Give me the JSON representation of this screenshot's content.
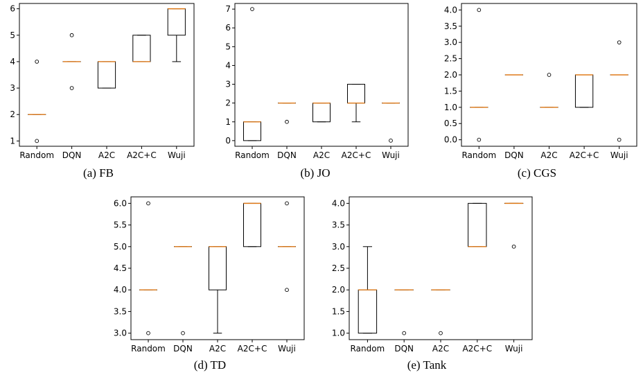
{
  "chart_data": [
    {
      "type": "box",
      "caption": "(a)  FB",
      "categories": [
        "Random",
        "DQN",
        "A2C",
        "A2C+C",
        "Wuji"
      ],
      "yticks": [
        "1",
        "2",
        "3",
        "4",
        "5",
        "6"
      ],
      "ylim": [
        0.8,
        6.2
      ],
      "boxes": [
        {
          "q1": 2,
          "median": 2,
          "q3": 2,
          "whislo": 2,
          "whishi": 2,
          "fliers": [
            1,
            4
          ]
        },
        {
          "q1": 4,
          "median": 4,
          "q3": 4,
          "whislo": 4,
          "whishi": 4,
          "fliers": [
            3,
            5
          ]
        },
        {
          "q1": 3,
          "median": 4,
          "q3": 4,
          "whislo": 3,
          "whishi": 4,
          "fliers": []
        },
        {
          "q1": 4,
          "median": 4,
          "q3": 5,
          "whislo": 4,
          "whishi": 5,
          "fliers": []
        },
        {
          "q1": 5,
          "median": 6,
          "q3": 6,
          "whislo": 4,
          "whishi": 6,
          "fliers": []
        }
      ]
    },
    {
      "type": "box",
      "caption": "(b)  JO",
      "categories": [
        "Random",
        "DQN",
        "A2C",
        "A2C+C",
        "Wuji"
      ],
      "yticks": [
        "0",
        "1",
        "2",
        "3",
        "4",
        "5",
        "6",
        "7"
      ],
      "ylim": [
        -0.3,
        7.3
      ],
      "boxes": [
        {
          "q1": 0,
          "median": 1,
          "q3": 1,
          "whislo": 0,
          "whishi": 1,
          "fliers": [
            7
          ]
        },
        {
          "q1": 2,
          "median": 2,
          "q3": 2,
          "whislo": 2,
          "whishi": 2,
          "fliers": [
            1
          ]
        },
        {
          "q1": 1,
          "median": 2,
          "q3": 2,
          "whislo": 1,
          "whishi": 2,
          "fliers": []
        },
        {
          "q1": 2,
          "median": 2,
          "q3": 3,
          "whislo": 1,
          "whishi": 3,
          "fliers": []
        },
        {
          "q1": 2,
          "median": 2,
          "q3": 2,
          "whislo": 2,
          "whishi": 2,
          "fliers": [
            0
          ]
        }
      ]
    },
    {
      "type": "box",
      "caption": "(c)  CGS",
      "categories": [
        "Random",
        "DQN",
        "A2C",
        "A2C+C",
        "Wuji"
      ],
      "yticks": [
        "0.0",
        "0.5",
        "1.0",
        "1.5",
        "2.0",
        "2.5",
        "3.0",
        "3.5",
        "4.0"
      ],
      "ylim": [
        -0.2,
        4.2
      ],
      "boxes": [
        {
          "q1": 1,
          "median": 1,
          "q3": 1,
          "whislo": 1,
          "whishi": 1,
          "fliers": [
            0,
            4
          ]
        },
        {
          "q1": 2,
          "median": 2,
          "q3": 2,
          "whislo": 2,
          "whishi": 2,
          "fliers": []
        },
        {
          "q1": 1,
          "median": 1,
          "q3": 1,
          "whislo": 1,
          "whishi": 1,
          "fliers": [
            2
          ]
        },
        {
          "q1": 1,
          "median": 2,
          "q3": 2,
          "whislo": 1,
          "whishi": 2,
          "fliers": []
        },
        {
          "q1": 2,
          "median": 2,
          "q3": 2,
          "whislo": 2,
          "whishi": 2,
          "fliers": [
            0,
            3
          ]
        }
      ]
    },
    {
      "type": "box",
      "caption": "(d)  TD",
      "categories": [
        "Random",
        "DQN",
        "A2C",
        "A2C+C",
        "Wuji"
      ],
      "yticks": [
        "3.0",
        "3.5",
        "4.0",
        "4.5",
        "5.0",
        "5.5",
        "6.0"
      ],
      "ylim": [
        2.85,
        6.15
      ],
      "boxes": [
        {
          "q1": 4,
          "median": 4,
          "q3": 4,
          "whislo": 4,
          "whishi": 4,
          "fliers": [
            3,
            6
          ]
        },
        {
          "q1": 5,
          "median": 5,
          "q3": 5,
          "whislo": 5,
          "whishi": 5,
          "fliers": [
            3
          ]
        },
        {
          "q1": 4,
          "median": 5,
          "q3": 5,
          "whislo": 3,
          "whishi": 5,
          "fliers": []
        },
        {
          "q1": 5,
          "median": 6,
          "q3": 6,
          "whislo": 5,
          "whishi": 6,
          "fliers": []
        },
        {
          "q1": 5,
          "median": 5,
          "q3": 5,
          "whislo": 5,
          "whishi": 5,
          "fliers": [
            4,
            6
          ]
        }
      ]
    },
    {
      "type": "box",
      "caption": "(e)  Tank",
      "categories": [
        "Random",
        "DQN",
        "A2C",
        "A2C+C",
        "Wuji"
      ],
      "yticks": [
        "1.0",
        "1.5",
        "2.0",
        "2.5",
        "3.0",
        "3.5",
        "4.0"
      ],
      "ylim": [
        0.85,
        4.15
      ],
      "boxes": [
        {
          "q1": 1,
          "median": 2,
          "q3": 2,
          "whislo": 1,
          "whishi": 3,
          "fliers": []
        },
        {
          "q1": 2,
          "median": 2,
          "q3": 2,
          "whislo": 2,
          "whishi": 2,
          "fliers": [
            1
          ]
        },
        {
          "q1": 2,
          "median": 2,
          "q3": 2,
          "whislo": 2,
          "whishi": 2,
          "fliers": [
            1
          ]
        },
        {
          "q1": 3,
          "median": 3,
          "q3": 4,
          "whislo": 3,
          "whishi": 4,
          "fliers": []
        },
        {
          "q1": 4,
          "median": 4,
          "q3": 4,
          "whislo": 4,
          "whishi": 4,
          "fliers": [
            3
          ]
        }
      ]
    }
  ],
  "colors": {
    "median": "#e07b1a",
    "box": "#000000",
    "frame": "#000000"
  }
}
